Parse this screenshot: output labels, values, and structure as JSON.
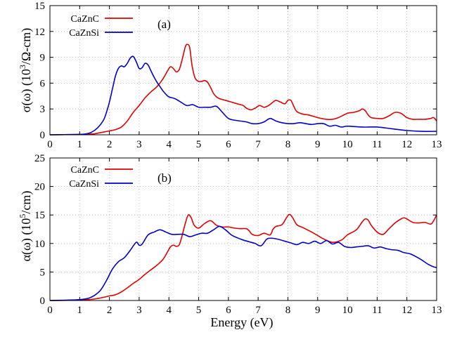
{
  "chart_data": [
    {
      "type": "line",
      "panel": "(a)",
      "ylabel": "σ(ω) (10³/Ω-cm)",
      "ylabel_main": "σ(ω) (10",
      "ylabel_sup": "3",
      "ylabel_tail": "/Ω-cm)",
      "xlim": [
        0,
        13
      ],
      "ylim": [
        0,
        15
      ],
      "xticks": [
        "0",
        "1",
        "2",
        "3",
        "4",
        "5",
        "6",
        "7",
        "8",
        "9",
        "10",
        "11",
        "12",
        "13"
      ],
      "yticks": [
        "0",
        "3",
        "6",
        "9",
        "12",
        "15"
      ],
      "grid": true,
      "legend_position": "top-left",
      "series": [
        {
          "name": "CaZnC",
          "color": "#e00000",
          "x": [
            0,
            0.5,
            1.0,
            1.3,
            1.5,
            1.7,
            2.0,
            2.2,
            2.4,
            2.6,
            2.8,
            3.0,
            3.2,
            3.4,
            3.6,
            3.8,
            3.95,
            4.05,
            4.15,
            4.25,
            4.35,
            4.45,
            4.55,
            4.62,
            4.7,
            4.78,
            4.88,
            5.0,
            5.1,
            5.2,
            5.3,
            5.4,
            5.5,
            5.6,
            5.7,
            5.9,
            6.1,
            6.3,
            6.5,
            6.6,
            6.75,
            6.9,
            7.05,
            7.2,
            7.35,
            7.5,
            7.6,
            7.75,
            7.9,
            8.0,
            8.1,
            8.2,
            8.3,
            8.5,
            8.7,
            9.0,
            9.3,
            9.5,
            9.7,
            10.0,
            10.2,
            10.4,
            10.5,
            10.6,
            10.7,
            10.8,
            11.0,
            11.2,
            11.4,
            11.6,
            11.8,
            12.0,
            12.2,
            12.4,
            12.6,
            12.8,
            12.9,
            13.0
          ],
          "values": [
            0,
            0.02,
            0.05,
            0.08,
            0.12,
            0.25,
            0.45,
            0.6,
            0.9,
            1.6,
            2.6,
            3.4,
            4.3,
            5.0,
            5.6,
            6.5,
            7.4,
            7.9,
            7.7,
            7.3,
            7.6,
            8.8,
            10.2,
            10.5,
            10.1,
            8.0,
            6.6,
            6.2,
            6.2,
            6.3,
            6.1,
            5.5,
            4.8,
            4.4,
            4.2,
            4.0,
            3.8,
            3.6,
            3.4,
            3.1,
            2.9,
            3.1,
            3.4,
            3.2,
            3.4,
            3.8,
            4.0,
            3.8,
            3.6,
            4.0,
            4.0,
            3.3,
            2.7,
            2.4,
            2.3,
            2.0,
            1.8,
            1.8,
            2.0,
            2.5,
            2.6,
            2.8,
            3.0,
            2.8,
            2.3,
            2.0,
            1.9,
            1.9,
            2.2,
            2.6,
            2.5,
            2.0,
            1.8,
            1.8,
            1.8,
            1.9,
            2.0,
            1.6
          ]
        },
        {
          "name": "CaZnSi",
          "color": "#0000cc",
          "x": [
            0,
            0.5,
            1.0,
            1.2,
            1.4,
            1.6,
            1.8,
            1.9,
            2.0,
            2.1,
            2.2,
            2.3,
            2.4,
            2.5,
            2.6,
            2.7,
            2.8,
            2.9,
            3.0,
            3.1,
            3.2,
            3.3,
            3.4,
            3.5,
            3.6,
            3.7,
            3.8,
            3.9,
            4.0,
            4.2,
            4.4,
            4.6,
            4.8,
            5.0,
            5.2,
            5.4,
            5.6,
            5.8,
            6.0,
            6.2,
            6.4,
            6.6,
            6.8,
            7.0,
            7.2,
            7.4,
            7.6,
            7.8,
            8.0,
            8.2,
            8.4,
            8.6,
            8.8,
            9.0,
            9.2,
            9.4,
            9.6,
            9.8,
            10.0,
            10.5,
            11.0,
            11.5,
            12.0,
            12.5,
            13.0
          ],
          "values": [
            0,
            0.02,
            0.05,
            0.1,
            0.3,
            0.8,
            1.7,
            2.6,
            3.8,
            5.3,
            6.8,
            7.7,
            8.0,
            7.9,
            8.3,
            8.9,
            9.1,
            8.5,
            7.7,
            7.8,
            8.3,
            8.1,
            7.4,
            6.7,
            6.1,
            5.6,
            5.1,
            4.7,
            4.4,
            4.2,
            3.8,
            3.4,
            3.5,
            3.2,
            3.2,
            3.2,
            3.3,
            2.6,
            1.9,
            1.7,
            1.6,
            1.5,
            1.3,
            1.3,
            1.5,
            1.9,
            1.6,
            1.4,
            1.3,
            1.3,
            1.4,
            1.3,
            1.2,
            1.3,
            1.3,
            1.0,
            1.1,
            0.9,
            1.0,
            0.9,
            0.9,
            0.7,
            0.5,
            0.4,
            0.4
          ]
        }
      ]
    },
    {
      "type": "line",
      "panel": "(b)",
      "ylabel": "α(ω) (10⁵/cm)",
      "ylabel_main": "α(ω) (10",
      "ylabel_sup": "5",
      "ylabel_tail": "/cm)",
      "xlabel": "Energy (eV)",
      "xlim": [
        0,
        13
      ],
      "ylim": [
        0,
        25
      ],
      "xticks": [
        "0",
        "1",
        "2",
        "3",
        "4",
        "5",
        "6",
        "7",
        "8",
        "9",
        "10",
        "11",
        "12",
        "13"
      ],
      "yticks": [
        "0",
        "5",
        "10",
        "15",
        "20",
        "25"
      ],
      "grid": true,
      "legend_position": "top-left",
      "series": [
        {
          "name": "CaZnC",
          "color": "#e00000",
          "x": [
            0,
            0.5,
            1.0,
            1.4,
            1.6,
            1.8,
            2.0,
            2.2,
            2.4,
            2.6,
            2.8,
            3.0,
            3.2,
            3.4,
            3.6,
            3.8,
            3.95,
            4.05,
            4.15,
            4.25,
            4.35,
            4.45,
            4.55,
            4.65,
            4.75,
            4.85,
            5.0,
            5.2,
            5.4,
            5.6,
            5.8,
            6.0,
            6.2,
            6.4,
            6.6,
            6.7,
            6.8,
            7.0,
            7.2,
            7.4,
            7.5,
            7.6,
            7.8,
            7.95,
            8.05,
            8.15,
            8.3,
            8.5,
            8.8,
            9.0,
            9.2,
            9.5,
            9.8,
            10.0,
            10.3,
            10.5,
            10.6,
            10.7,
            10.8,
            11.0,
            11.2,
            11.4,
            11.6,
            11.8,
            11.9,
            12.0,
            12.2,
            12.4,
            12.6,
            12.8,
            12.9,
            13.0
          ],
          "values": [
            0,
            0.02,
            0.08,
            0.2,
            0.35,
            0.55,
            0.8,
            1.0,
            1.5,
            2.2,
            3.0,
            3.7,
            4.6,
            5.4,
            6.2,
            7.2,
            8.5,
            9.4,
            9.7,
            9.5,
            9.8,
            11.5,
            13.5,
            15.0,
            14.5,
            13.2,
            12.7,
            13.5,
            14.0,
            13.2,
            12.9,
            12.9,
            12.7,
            12.6,
            12.6,
            12.2,
            11.6,
            11.4,
            11.8,
            11.5,
            12.5,
            13.0,
            13.3,
            14.5,
            15.1,
            14.6,
            13.3,
            12.8,
            12.0,
            11.4,
            10.8,
            10.2,
            10.6,
            11.5,
            12.4,
            13.8,
            14.3,
            14.1,
            13.2,
            12.0,
            11.6,
            12.6,
            13.6,
            14.3,
            14.5,
            14.3,
            13.7,
            13.6,
            13.7,
            13.4,
            14.0,
            15.0
          ]
        },
        {
          "name": "CaZnSi",
          "color": "#0000cc",
          "x": [
            0,
            0.5,
            1.0,
            1.3,
            1.5,
            1.7,
            1.9,
            2.1,
            2.3,
            2.5,
            2.7,
            2.9,
            3.0,
            3.1,
            3.3,
            3.5,
            3.7,
            3.9,
            4.1,
            4.3,
            4.5,
            4.7,
            4.9,
            5.1,
            5.3,
            5.5,
            5.7,
            5.9,
            6.1,
            6.3,
            6.5,
            6.7,
            6.9,
            7.1,
            7.3,
            7.5,
            7.7,
            7.9,
            8.1,
            8.3,
            8.5,
            8.7,
            8.9,
            9.1,
            9.3,
            9.5,
            9.7,
            9.9,
            10.1,
            10.3,
            10.5,
            10.7,
            10.9,
            11.1,
            11.3,
            11.5,
            11.7,
            11.9,
            12.1,
            12.3,
            12.5,
            12.7,
            12.9,
            13.0
          ],
          "values": [
            0,
            0.05,
            0.15,
            0.4,
            0.9,
            1.8,
            3.5,
            5.5,
            6.8,
            7.5,
            8.8,
            10.2,
            9.7,
            9.9,
            11.5,
            12.0,
            12.4,
            12.0,
            11.6,
            11.6,
            11.6,
            11.2,
            11.5,
            11.8,
            11.8,
            12.4,
            13.0,
            12.4,
            11.5,
            11.0,
            10.6,
            10.3,
            10.0,
            9.6,
            10.8,
            10.9,
            10.7,
            10.4,
            10.1,
            9.8,
            10.2,
            10.0,
            10.4,
            10.0,
            10.5,
            9.9,
            10.2,
            9.5,
            9.3,
            9.4,
            9.5,
            9.6,
            9.2,
            9.4,
            9.1,
            8.9,
            8.8,
            8.4,
            8.2,
            7.7,
            7.1,
            6.4,
            5.9,
            5.8
          ]
        }
      ]
    }
  ]
}
